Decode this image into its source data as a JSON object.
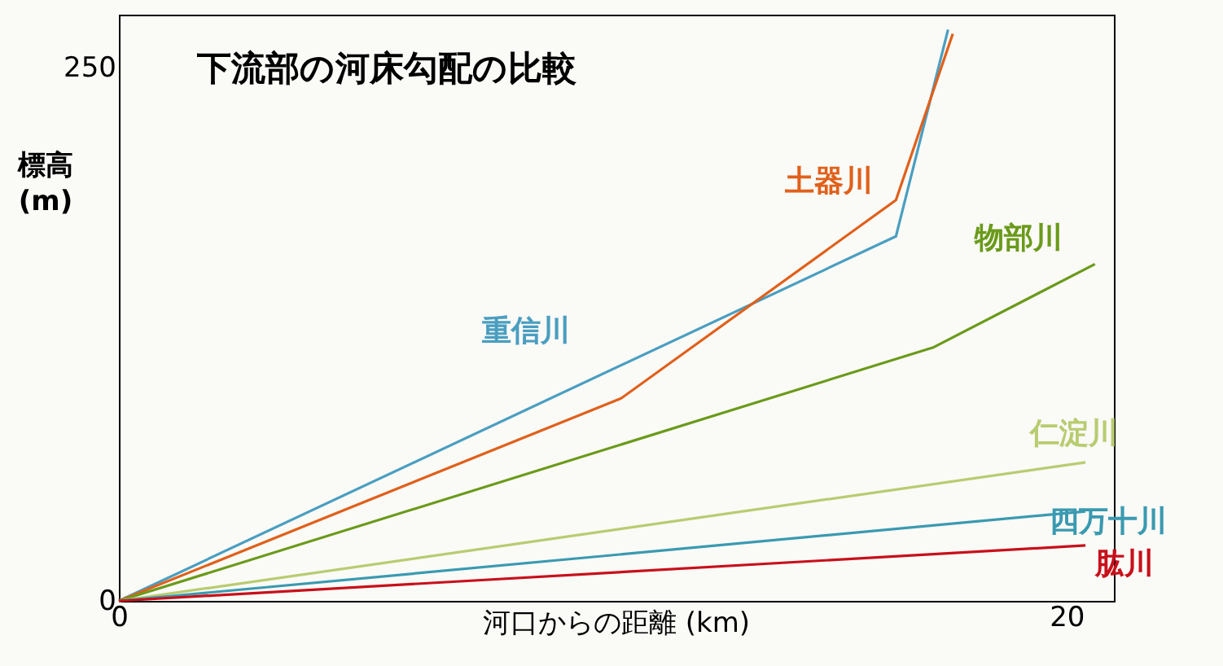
{
  "chart_data": {
    "type": "line",
    "title": "下流部の河床勾配の比較",
    "xlabel": "河口からの距離 (km)",
    "ylabel": "標高\n(m)",
    "xlim": [
      0,
      21
    ],
    "xticks": [
      0,
      20
    ],
    "ylim": [
      0,
      275
    ],
    "yticks": [
      0,
      250
    ],
    "grid": false,
    "marker": "none",
    "line_style": "solid",
    "series": [
      {
        "name": "重信川",
        "color": "#4a9ec0",
        "x": [
          0,
          16.4,
          17.5
        ],
        "values": [
          0,
          171,
          268
        ]
      },
      {
        "name": "土器川",
        "color": "#e0601a",
        "x": [
          0,
          10.6,
          16.4,
          17.6
        ],
        "values": [
          0,
          95,
          188,
          266
        ]
      },
      {
        "name": "物部川",
        "color": "#6a9a1a",
        "x": [
          0,
          17.2,
          20.6
        ],
        "values": [
          0,
          119,
          158
        ]
      },
      {
        "name": "仁淀川",
        "color": "#b8cc70",
        "x": [
          0,
          20.4
        ],
        "values": [
          0,
          65
        ]
      },
      {
        "name": "四万十川",
        "color": "#3a9ab0",
        "x": [
          0,
          20.4
        ],
        "values": [
          0,
          42
        ]
      },
      {
        "name": "肱川",
        "color": "#c8101a",
        "x": [
          0,
          20.4
        ],
        "values": [
          0,
          26
        ]
      }
    ]
  }
}
